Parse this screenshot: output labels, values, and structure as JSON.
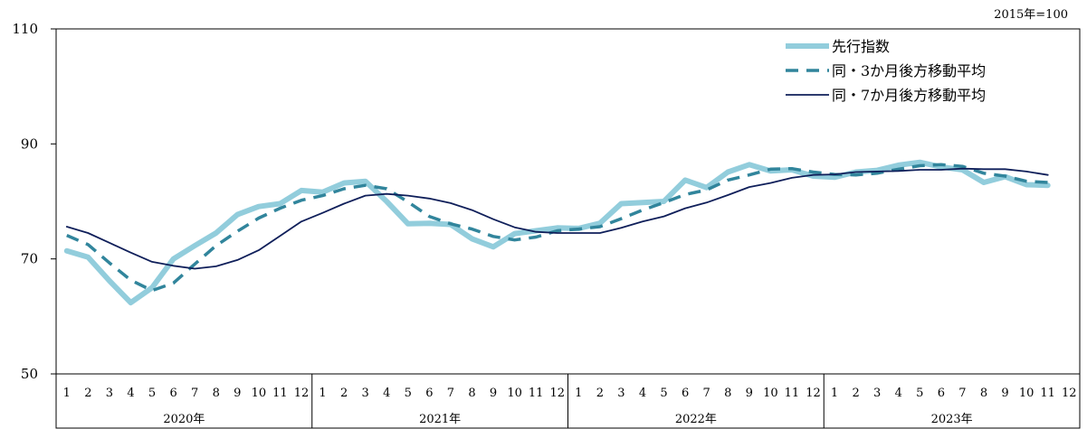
{
  "chart_data": {
    "type": "line",
    "unit_note": "2015年=100",
    "ylim": [
      50,
      110
    ],
    "yticks": [
      "50",
      "70",
      "90",
      "110"
    ],
    "years": [
      "2020年",
      "2021年",
      "2022年",
      "2023年"
    ],
    "months": [
      "1",
      "2",
      "3",
      "4",
      "5",
      "6",
      "7",
      "8",
      "9",
      "10",
      "11",
      "12"
    ],
    "grid": false,
    "legend_position": "top-right",
    "series": [
      {
        "name": "先行指数",
        "style": "thick-solid",
        "color": "#92cddc",
        "values": [
          71.4,
          70.3,
          66.2,
          62.4,
          65.0,
          70.0,
          72.3,
          74.5,
          77.7,
          79.1,
          79.6,
          81.9,
          81.6,
          83.2,
          83.5,
          80.0,
          76.1,
          76.2,
          76.0,
          73.5,
          72.1,
          74.4,
          74.9,
          75.4,
          75.3,
          76.2,
          79.6,
          79.8,
          80.0,
          83.7,
          82.4,
          85.1,
          86.4,
          85.3,
          85.5,
          84.4,
          84.2,
          85.1,
          85.4,
          86.3,
          86.8,
          86.0,
          85.5,
          83.3,
          84.3,
          82.9,
          82.8
        ]
      },
      {
        "name": "同・3か月後方移動平均",
        "style": "dashed",
        "color": "#31859c",
        "values": [
          74.1,
          72.5,
          69.3,
          66.3,
          64.5,
          65.8,
          69.1,
          72.3,
          74.8,
          77.1,
          78.8,
          80.2,
          81.0,
          82.2,
          82.8,
          82.2,
          79.9,
          77.4,
          76.1,
          75.2,
          73.9,
          73.3,
          73.8,
          74.9,
          75.2,
          75.6,
          77.0,
          78.5,
          79.8,
          81.2,
          82.0,
          83.7,
          84.6,
          85.6,
          85.7,
          85.1,
          84.7,
          84.6,
          84.9,
          85.6,
          86.2,
          86.4,
          86.1,
          84.9,
          84.4,
          83.5,
          83.3
        ]
      },
      {
        "name": "同・7か月後方移動平均",
        "style": "thin-solid",
        "color": "#0f1f5a",
        "values": [
          75.6,
          74.5,
          72.8,
          71.1,
          69.5,
          68.8,
          68.3,
          68.7,
          69.8,
          71.5,
          74.0,
          76.5,
          78.0,
          79.6,
          81.0,
          81.3,
          81.0,
          80.5,
          79.7,
          78.5,
          76.9,
          75.5,
          74.7,
          74.5,
          74.5,
          74.5,
          75.4,
          76.5,
          77.4,
          78.8,
          79.8,
          81.1,
          82.5,
          83.2,
          84.1,
          84.6,
          84.7,
          85.1,
          85.2,
          85.3,
          85.5,
          85.5,
          85.7,
          85.6,
          85.6,
          85.2,
          84.6
        ]
      }
    ]
  }
}
